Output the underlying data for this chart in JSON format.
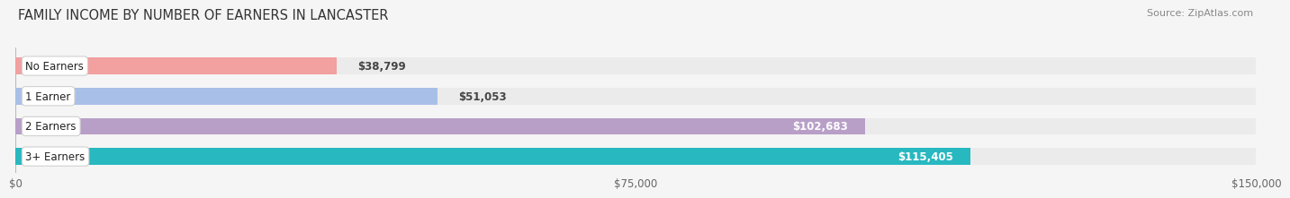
{
  "title": "FAMILY INCOME BY NUMBER OF EARNERS IN LANCASTER",
  "source": "Source: ZipAtlas.com",
  "categories": [
    "No Earners",
    "1 Earner",
    "2 Earners",
    "3+ Earners"
  ],
  "values": [
    38799,
    51053,
    102683,
    115405
  ],
  "labels": [
    "$38,799",
    "$51,053",
    "$102,683",
    "$115,405"
  ],
  "bar_colors": [
    "#f2a0a0",
    "#a8c0e8",
    "#b89fc8",
    "#28b8c0"
  ],
  "label_colors": [
    "#555555",
    "#555555",
    "#ffffff",
    "#ffffff"
  ],
  "bg_color": "#f5f5f5",
  "bar_bg_color": "#e2e2e2",
  "track_bg_color": "#ebebeb",
  "xmax": 150000,
  "xticks": [
    0,
    75000,
    150000
  ],
  "xticklabels": [
    "$0",
    "$75,000",
    "$150,000"
  ],
  "title_fontsize": 10.5,
  "source_fontsize": 8,
  "label_fontsize": 8.5,
  "category_fontsize": 8.5
}
